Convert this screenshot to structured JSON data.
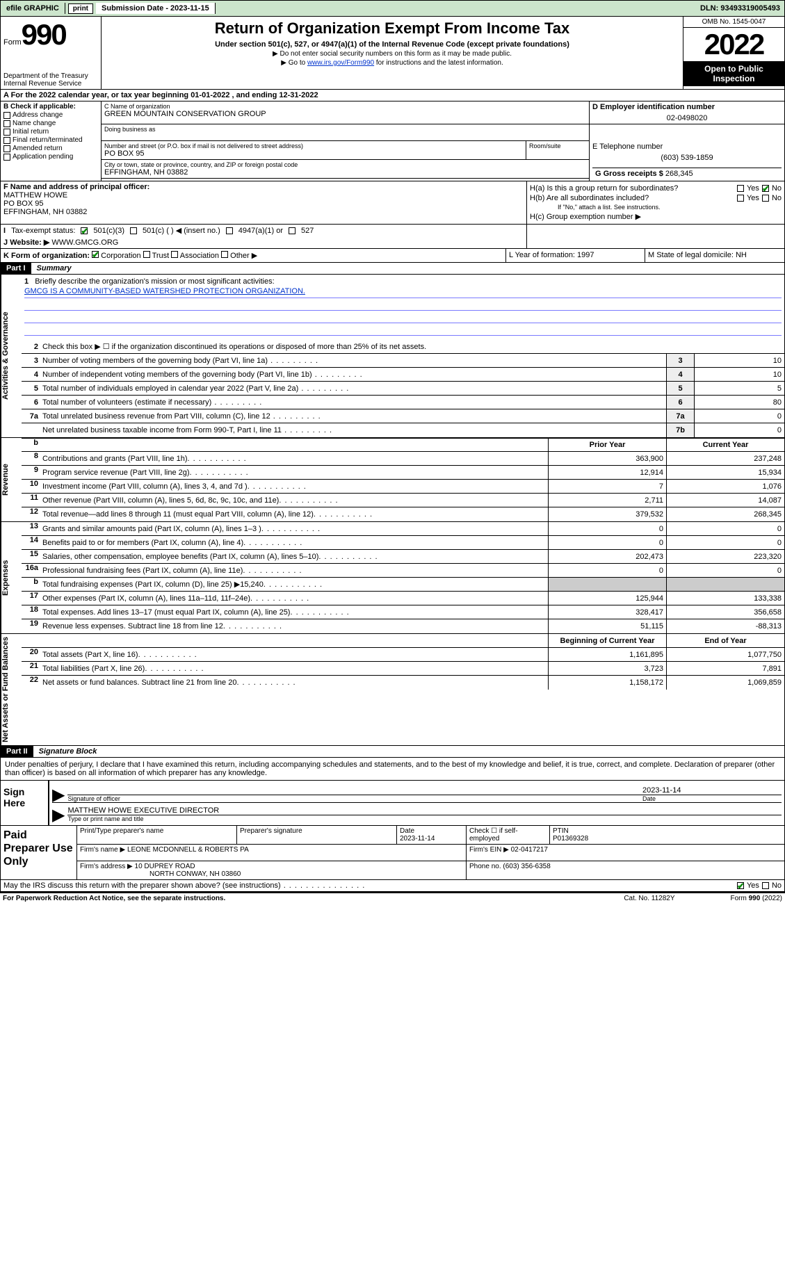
{
  "topbar": {
    "efile": "efile GRAPHIC",
    "print": "print",
    "sub_label": "Submission Date - 2023-11-15",
    "dln": "DLN: 93493319005493"
  },
  "header": {
    "form_word": "Form",
    "form_num": "990",
    "title": "Return of Organization Exempt From Income Tax",
    "sub": "Under section 501(c), 527, or 4947(a)(1) of the Internal Revenue Code (except private foundations)",
    "inst1": "▶ Do not enter social security numbers on this form as it may be made public.",
    "inst2_pre": "▶ Go to ",
    "inst2_link": "www.irs.gov/Form990",
    "inst2_post": " for instructions and the latest information.",
    "dept": "Department of the Treasury\nInternal Revenue Service",
    "omb": "OMB No. 1545-0047",
    "year": "2022",
    "open": "Open to Public Inspection"
  },
  "row_a": "A For the 2022 calendar year, or tax year beginning 01-01-2022   , and ending 12-31-2022",
  "col_b": {
    "title": "B Check if applicable:",
    "items": [
      "Address change",
      "Name change",
      "Initial return",
      "Final return/terminated",
      "Amended return",
      "Application pending"
    ]
  },
  "org": {
    "c_label": "C Name of organization",
    "name": "GREEN MOUNTAIN CONSERVATION GROUP",
    "dba_label": "Doing business as",
    "street_label": "Number and street (or P.O. box if mail is not delivered to street address)",
    "street": "PO BOX 95",
    "room_label": "Room/suite",
    "city_label": "City or town, state or province, country, and ZIP or foreign postal code",
    "city": "EFFINGHAM, NH  03882",
    "d_label": "D Employer identification number",
    "ein": "02-0498020",
    "e_label": "E Telephone number",
    "phone": "(603) 539-1859",
    "g_label": "G Gross receipts $",
    "gross": "268,345"
  },
  "officer": {
    "f_label": "F Name and address of principal officer:",
    "name": "MATTHEW HOWE",
    "addr1": "PO BOX 95",
    "addr2": "EFFINGHAM, NH  03882"
  },
  "h": {
    "a": "H(a)  Is this a group return for subordinates?",
    "b": "H(b)  Are all subordinates included?",
    "b_note": "If \"No,\" attach a list. See instructions.",
    "c": "H(c)  Group exemption number ▶"
  },
  "tax_status": {
    "label": "Tax-exempt status:",
    "opts": [
      "501(c)(3)",
      "501(c) (  ) ◀ (insert no.)",
      "4947(a)(1) or",
      "527"
    ]
  },
  "website": {
    "label": "Website: ▶",
    "val": "WWW.GMCG.ORG"
  },
  "row_k": {
    "k": "K Form of organization:",
    "opts": [
      "Corporation",
      "Trust",
      "Association",
      "Other ▶"
    ],
    "l": "L Year of formation: 1997",
    "m": "M State of legal domicile: NH"
  },
  "part1": {
    "hdr": "Part I",
    "title": "Summary"
  },
  "mission": {
    "q": "Briefly describe the organization's mission or most significant activities:",
    "text": "GMCG IS A COMMUNITY-BASED WATERSHED PROTECTION ORGANIZATION."
  },
  "gov_lines": [
    {
      "n": "2",
      "d": "Check this box ▶ ☐  if the organization discontinued its operations or disposed of more than 25% of its net assets.",
      "noval": true
    },
    {
      "n": "3",
      "d": "Number of voting members of the governing body (Part VI, line 1a)",
      "box": "3",
      "v": "10"
    },
    {
      "n": "4",
      "d": "Number of independent voting members of the governing body (Part VI, line 1b)",
      "box": "4",
      "v": "10"
    },
    {
      "n": "5",
      "d": "Total number of individuals employed in calendar year 2022 (Part V, line 2a)",
      "box": "5",
      "v": "5"
    },
    {
      "n": "6",
      "d": "Total number of volunteers (estimate if necessary)",
      "box": "6",
      "v": "80"
    },
    {
      "n": "7a",
      "d": "Total unrelated business revenue from Part VIII, column (C), line 12",
      "box": "7a",
      "v": "0"
    },
    {
      "n": "",
      "d": "Net unrelated business taxable income from Form 990-T, Part I, line 11",
      "box": "7b",
      "v": "0"
    }
  ],
  "rev_hdr": {
    "prior": "Prior Year",
    "curr": "Current Year"
  },
  "rev_lines": [
    {
      "n": "8",
      "d": "Contributions and grants (Part VIII, line 1h)",
      "p": "363,900",
      "c": "237,248"
    },
    {
      "n": "9",
      "d": "Program service revenue (Part VIII, line 2g)",
      "p": "12,914",
      "c": "15,934"
    },
    {
      "n": "10",
      "d": "Investment income (Part VIII, column (A), lines 3, 4, and 7d )",
      "p": "7",
      "c": "1,076"
    },
    {
      "n": "11",
      "d": "Other revenue (Part VIII, column (A), lines 5, 6d, 8c, 9c, 10c, and 11e)",
      "p": "2,711",
      "c": "14,087"
    },
    {
      "n": "12",
      "d": "Total revenue—add lines 8 through 11 (must equal Part VIII, column (A), line 12)",
      "p": "379,532",
      "c": "268,345"
    }
  ],
  "exp_lines": [
    {
      "n": "13",
      "d": "Grants and similar amounts paid (Part IX, column (A), lines 1–3 )",
      "p": "0",
      "c": "0"
    },
    {
      "n": "14",
      "d": "Benefits paid to or for members (Part IX, column (A), line 4)",
      "p": "0",
      "c": "0"
    },
    {
      "n": "15",
      "d": "Salaries, other compensation, employee benefits (Part IX, column (A), lines 5–10)",
      "p": "202,473",
      "c": "223,320"
    },
    {
      "n": "16a",
      "d": "Professional fundraising fees (Part IX, column (A), line 11e)",
      "p": "0",
      "c": "0"
    },
    {
      "n": "b",
      "d": "Total fundraising expenses (Part IX, column (D), line 25) ▶15,240",
      "p": "",
      "c": "",
      "gray": true
    },
    {
      "n": "17",
      "d": "Other expenses (Part IX, column (A), lines 11a–11d, 11f–24e)",
      "p": "125,944",
      "c": "133,338"
    },
    {
      "n": "18",
      "d": "Total expenses. Add lines 13–17 (must equal Part IX, column (A), line 25)",
      "p": "328,417",
      "c": "356,658"
    },
    {
      "n": "19",
      "d": "Revenue less expenses. Subtract line 18 from line 12",
      "p": "51,115",
      "c": "-88,313"
    }
  ],
  "na_hdr": {
    "beg": "Beginning of Current Year",
    "end": "End of Year"
  },
  "na_lines": [
    {
      "n": "20",
      "d": "Total assets (Part X, line 16)",
      "p": "1,161,895",
      "c": "1,077,750"
    },
    {
      "n": "21",
      "d": "Total liabilities (Part X, line 26)",
      "p": "3,723",
      "c": "7,891"
    },
    {
      "n": "22",
      "d": "Net assets or fund balances. Subtract line 21 from line 20",
      "p": "1,158,172",
      "c": "1,069,859"
    }
  ],
  "part2": {
    "hdr": "Part II",
    "title": "Signature Block"
  },
  "sig_text": "Under penalties of perjury, I declare that I have examined this return, including accompanying schedules and statements, and to the best of my knowledge and belief, it is true, correct, and complete. Declaration of preparer (other than officer) is based on all information of which preparer has any knowledge.",
  "sig": {
    "here": "Sign Here",
    "officer_label": "Signature of officer",
    "date_label": "Date",
    "date": "2023-11-14",
    "name": "MATTHEW HOWE  EXECUTIVE DIRECTOR",
    "name_label": "Type or print name and title"
  },
  "paid": {
    "title": "Paid Preparer Use Only",
    "h1": "Print/Type preparer's name",
    "h2": "Preparer's signature",
    "h3": "Date",
    "date": "2023-11-14",
    "h4_pre": "Check ☐ if self-employed",
    "h5": "PTIN",
    "ptin": "P01369328",
    "firm_name_label": "Firm's name    ▶",
    "firm_name": "LEONE MCDONNELL & ROBERTS PA",
    "firm_ein_label": "Firm's EIN ▶",
    "firm_ein": "02-0417217",
    "firm_addr_label": "Firm's address ▶",
    "firm_addr1": "10 DUPREY ROAD",
    "firm_addr2": "NORTH CONWAY, NH  03860",
    "phone_label": "Phone no.",
    "phone": "(603) 356-6358"
  },
  "may": "May the IRS discuss this return with the preparer shown above? (see instructions)",
  "footer": {
    "left": "For Paperwork Reduction Act Notice, see the separate instructions.",
    "mid": "Cat. No. 11282Y",
    "right": "Form 990 (2022)"
  },
  "vtabs": {
    "gov": "Activities & Governance",
    "rev": "Revenue",
    "exp": "Expenses",
    "na": "Net Assets or Fund Balances"
  },
  "yes": "Yes",
  "no": "No",
  "j": "J",
  "i": "I",
  "b_letter": "b"
}
